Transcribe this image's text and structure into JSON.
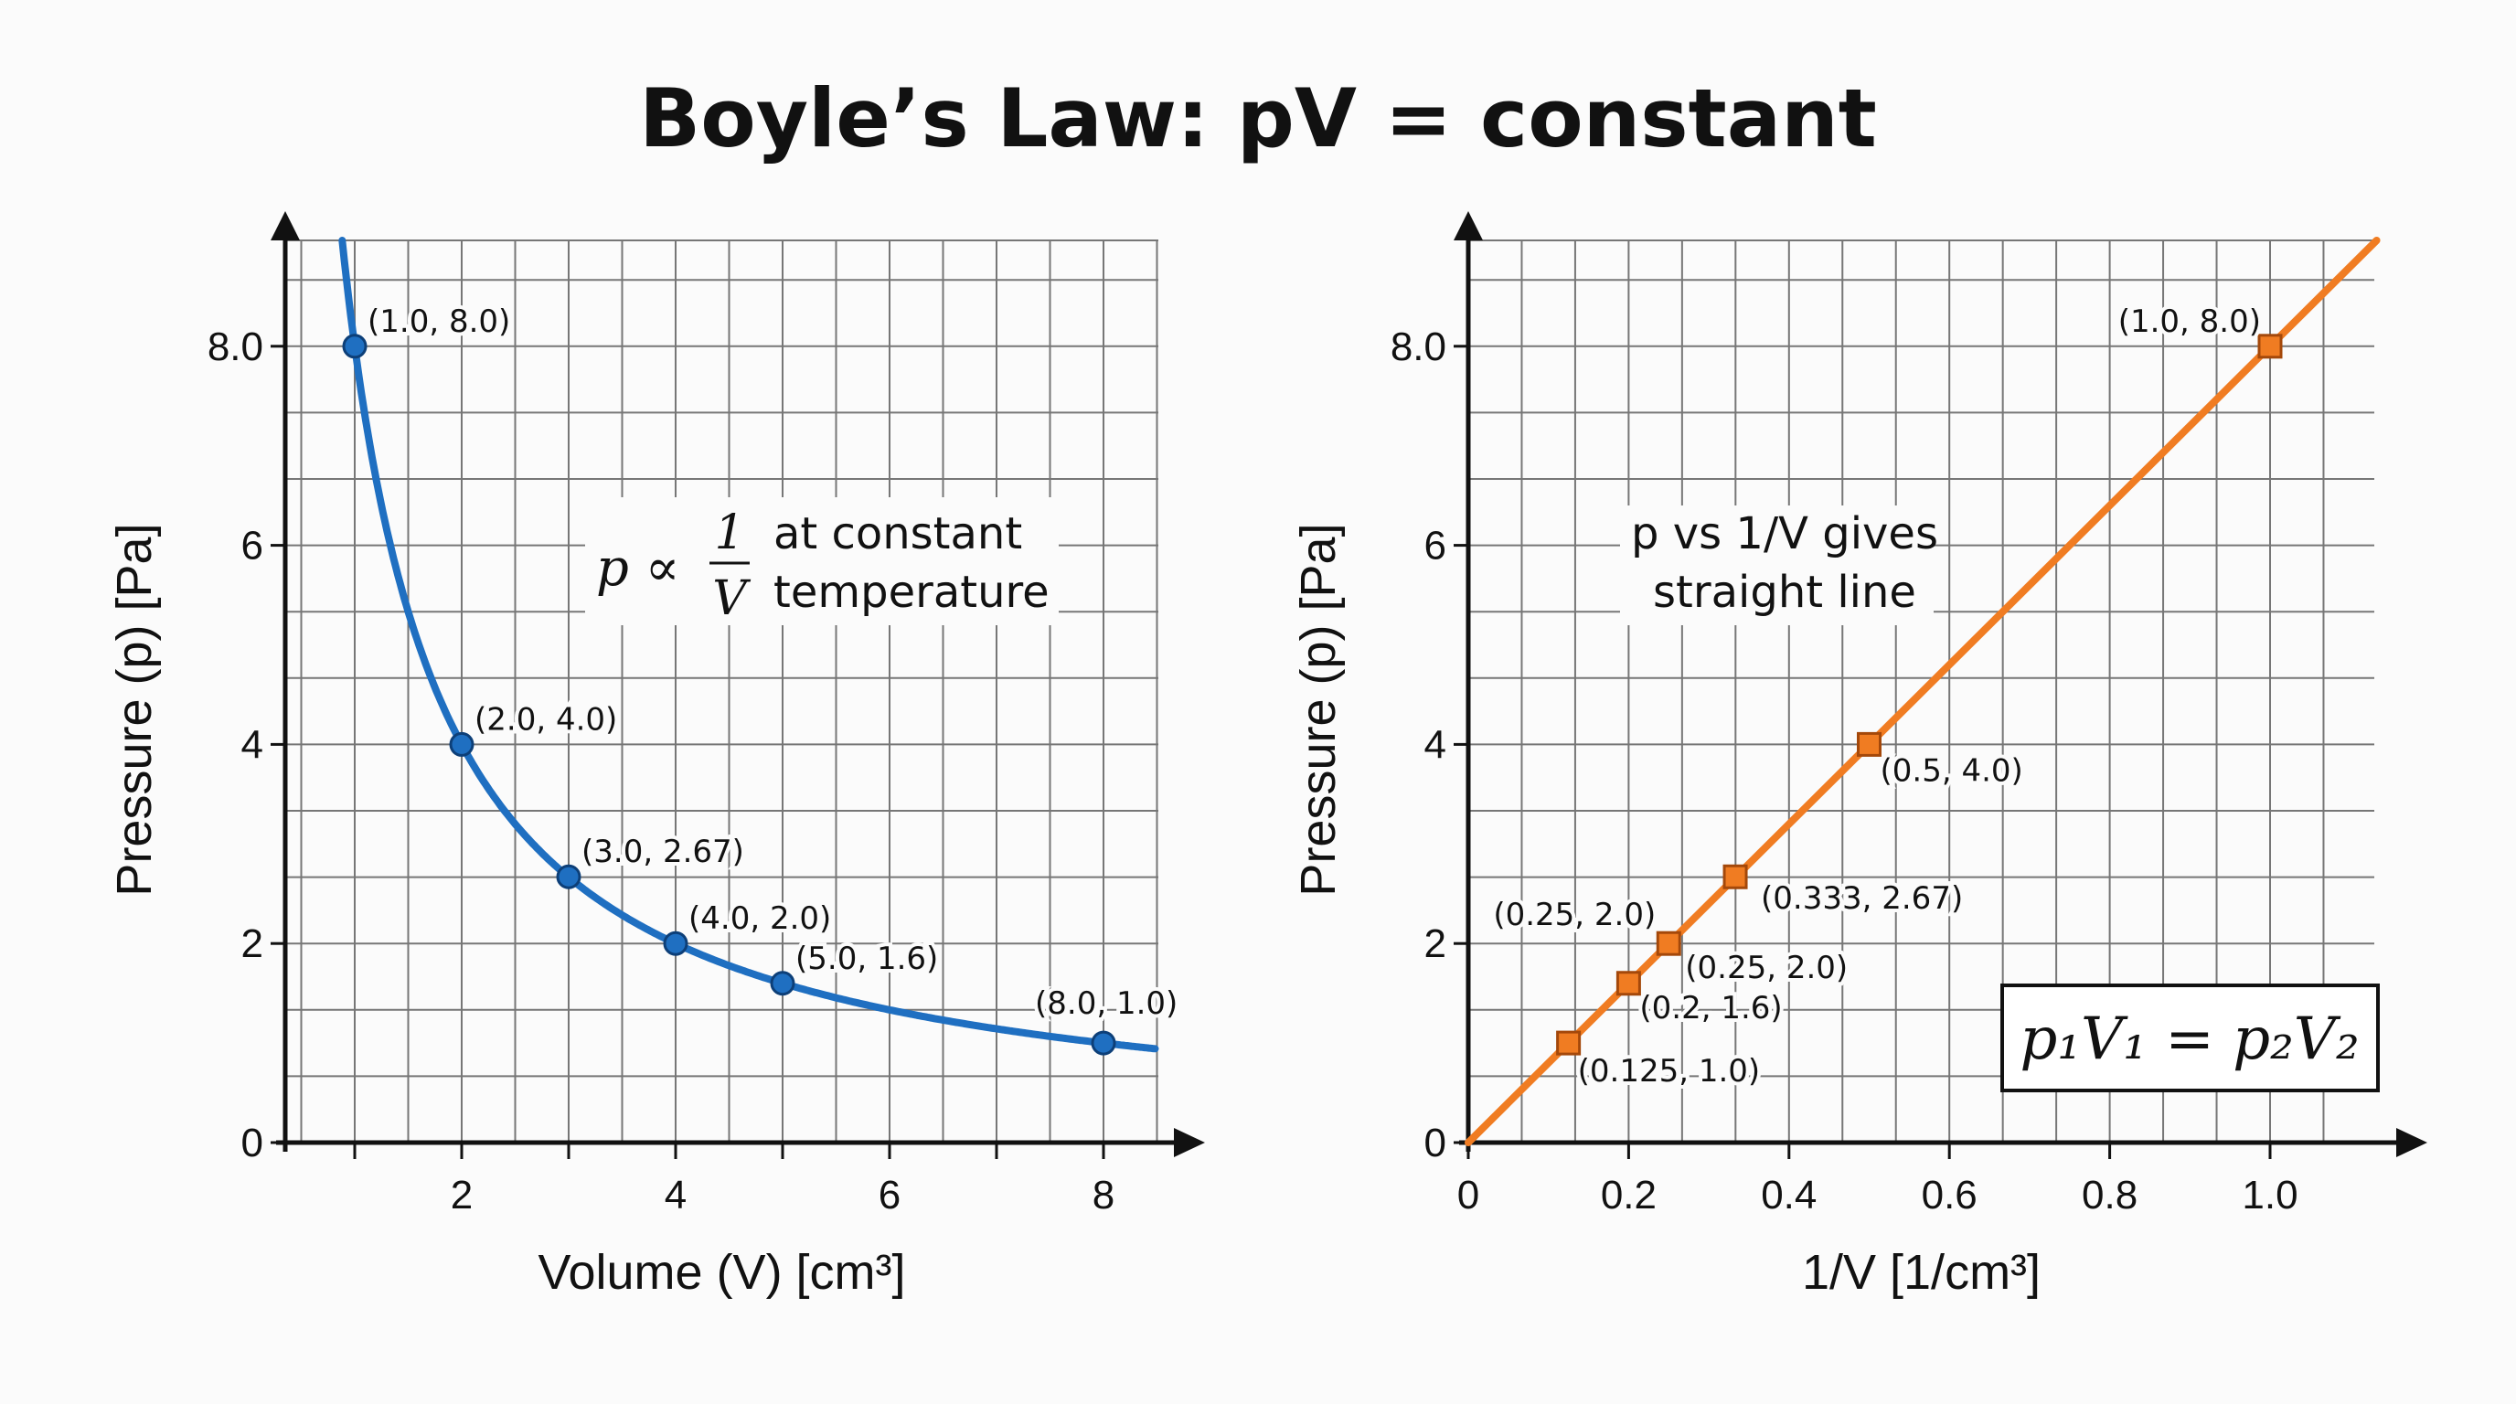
{
  "title": "Boyle’s Law: pV = constant",
  "chart_data": [
    {
      "type": "line",
      "xlabel": "Volume (V) [cm³]",
      "ylabel": "Pressure (p) [Pa]",
      "xlim": [
        0.35,
        8.5
      ],
      "ylim": [
        0,
        9
      ],
      "x_ticks": [
        1,
        2,
        3,
        4,
        5,
        6,
        7,
        8
      ],
      "x_tick_labels": [
        "",
        "2",
        "",
        "4",
        "",
        "6",
        "",
        "8"
      ],
      "y_ticks": [
        0,
        2,
        4,
        6,
        8
      ],
      "y_tick_labels": [
        "0",
        "2",
        "4",
        "6",
        "8.0"
      ],
      "grid": true,
      "color": "#1f6fc1",
      "curve": "p = 8 / V",
      "points": [
        {
          "x": 1.0,
          "y": 8.0,
          "label": "(1.0, 8.0)"
        },
        {
          "x": 2.0,
          "y": 4.0,
          "label": "(2.0, 4.0)"
        },
        {
          "x": 3.0,
          "y": 2.67,
          "label": "(3.0, 2.67)"
        },
        {
          "x": 4.0,
          "y": 2.0,
          "label": "(4.0, 2.0)"
        },
        {
          "x": 5.0,
          "y": 1.6,
          "label": "(5.0, 1.6)"
        },
        {
          "x": 8.0,
          "y": 1.0,
          "label": "(8.0, 1.0)"
        }
      ],
      "annotation": {
        "lhs": "p ∝",
        "num": "1",
        "den": "V",
        "line1": "at constant",
        "line2": "temperature"
      }
    },
    {
      "type": "line",
      "xlabel": "1/V [1/cm³]",
      "ylabel": "Pressure (p) [Pa]",
      "xlim": [
        0,
        1.13
      ],
      "ylim": [
        0,
        9
      ],
      "x_ticks": [
        0,
        0.2,
        0.4,
        0.6,
        0.8,
        1.0
      ],
      "x_tick_labels": [
        "0",
        "0.2",
        "0.4",
        "0.6",
        "0.8",
        "1.0"
      ],
      "y_ticks": [
        0,
        2,
        4,
        6,
        8
      ],
      "y_tick_labels": [
        "0",
        "2",
        "4",
        "6",
        "8.0"
      ],
      "grid": true,
      "color": "#f07c22",
      "line": "p = 8 × (1/V)",
      "points": [
        {
          "x": 0.125,
          "y": 1.0,
          "label": "(0.125, 1.0)"
        },
        {
          "x": 0.2,
          "y": 1.6,
          "label": "(0.2, 1.6)"
        },
        {
          "x": 0.25,
          "y": 2.0,
          "label": "(0.25, 2.0)"
        },
        {
          "x": 0.333,
          "y": 2.67,
          "label": "(0.333, 2.67)"
        },
        {
          "x": 0.5,
          "y": 4.0,
          "label": "(0.5, 4.0)"
        },
        {
          "x": 1.0,
          "y": 8.0,
          "label": "(1.0, 8.0)"
        }
      ],
      "extra_label": "(0.25, 2.0)",
      "annotation": {
        "line1": "p vs 1/V gives",
        "line2": "straight line"
      },
      "equation": "p₁V₁ = p₂V₂"
    }
  ]
}
